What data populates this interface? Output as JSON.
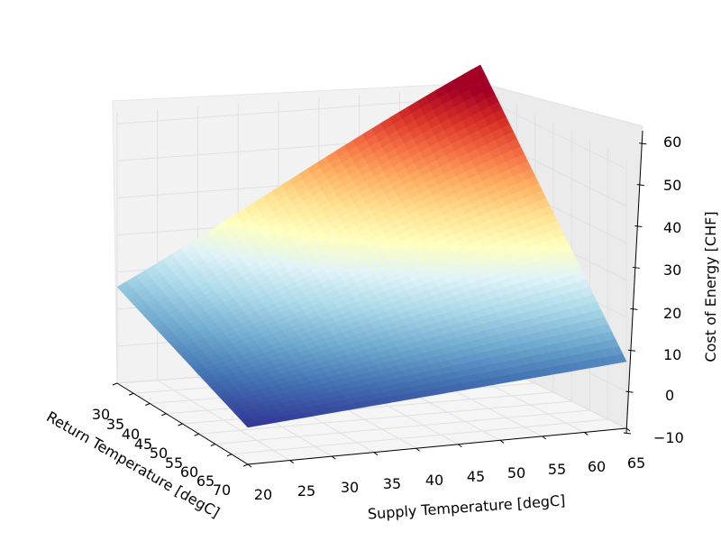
{
  "chart_data": {
    "type": "surface3d",
    "title": "",
    "xlabel": "Supply Temperature [degC]",
    "ylabel": "Return Temperature [degC]",
    "zlabel": "Cost of Energy [CHF]",
    "x_ticks": [
      "20",
      "25",
      "30",
      "35",
      "40",
      "45",
      "50",
      "55",
      "60",
      "65"
    ],
    "y_ticks": [
      "30",
      "35",
      "40",
      "45",
      "50",
      "55",
      "60",
      "65",
      "70"
    ],
    "z_ticks": [
      "−10",
      "0",
      "10",
      "20",
      "30",
      "40",
      "50",
      "60"
    ],
    "xlim": [
      20,
      65
    ],
    "ylim": [
      30,
      70
    ],
    "zlim": [
      -10,
      63
    ],
    "colormap": "RdYlBu_r",
    "grid": true,
    "surface_corners": [
      {
        "supply": 20,
        "return": 70,
        "cost": 0
      },
      {
        "supply": 20,
        "return": 30,
        "cost": 16
      },
      {
        "supply": 65,
        "return": 30,
        "cost": 63
      },
      {
        "supply": 65,
        "return": 70,
        "cost": 8
      }
    ]
  }
}
